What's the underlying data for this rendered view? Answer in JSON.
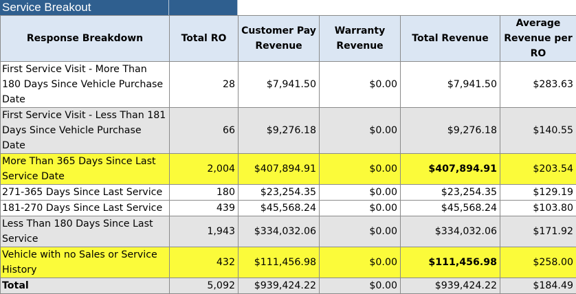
{
  "title": "Service Breakout",
  "headers": [
    "Response Breakdown",
    "Total RO",
    "Customer Pay Revenue",
    "Warranty Revenue",
    "Total Revenue",
    "Average Revenue per RO"
  ],
  "rows": [
    {
      "label": "First Service Visit - More Than 180 Days Since Vehicle Purchase Date",
      "total_ro": "28",
      "customer_pay": "$7,941.50",
      "warranty": "$0.00",
      "total_revenue": "$7,941.50",
      "avg_revenue": "$283.63"
    },
    {
      "label": "First Service Visit - Less Than 181 Days Since Vehicle Purchase Date",
      "total_ro": "66",
      "customer_pay": "$9,276.18",
      "warranty": "$0.00",
      "total_revenue": "$9,276.18",
      "avg_revenue": "$140.55"
    },
    {
      "label": "More Than 365 Days Since Last Service Date",
      "total_ro": "2,004",
      "customer_pay": "$407,894.91",
      "warranty": "$0.00",
      "total_revenue": "$407,894.91",
      "avg_revenue": "$203.54"
    },
    {
      "label": "271-365 Days Since Last Service",
      "total_ro": "180",
      "customer_pay": "$23,254.35",
      "warranty": "$0.00",
      "total_revenue": "$23,254.35",
      "avg_revenue": "$129.19"
    },
    {
      "label": "181-270 Days Since Last Service",
      "total_ro": "439",
      "customer_pay": "$45,568.24",
      "warranty": "$0.00",
      "total_revenue": "$45,568.24",
      "avg_revenue": "$103.80"
    },
    {
      "label": "Less Than 180 Days Since Last Service",
      "total_ro": "1,943",
      "customer_pay": "$334,032.06",
      "warranty": "$0.00",
      "total_revenue": "$334,032.06",
      "avg_revenue": "$171.92"
    },
    {
      "label": "Vehicle with no Sales or Service History",
      "total_ro": "432",
      "customer_pay": "$111,456.98",
      "warranty": "$0.00",
      "total_revenue": "$111,456.98",
      "avg_revenue": "$258.00"
    }
  ],
  "total": {
    "label": "Total",
    "total_ro": "5,092",
    "customer_pay": "$939,424.22",
    "warranty": "$0.00",
    "total_revenue": "$939,424.22",
    "avg_revenue": "$184.49"
  },
  "colors": {
    "title_bg": "#2f5f8f",
    "header_bg": "#dbe6f3",
    "highlight": "#fbfb3a",
    "gray_row": "#e4e4e4"
  }
}
